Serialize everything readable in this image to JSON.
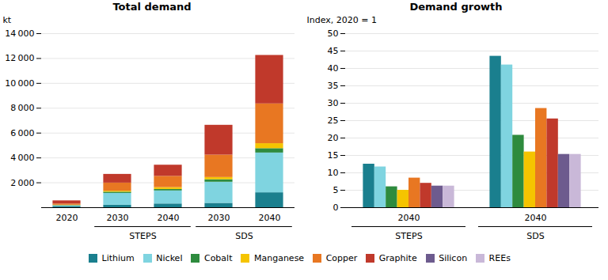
{
  "chart_data": [
    {
      "type": "bar",
      "stacked": true,
      "title": "Total demand",
      "y_label": "kt",
      "categories": [
        "2020",
        "2030",
        "2040",
        "2030",
        "2040"
      ],
      "category_groups": [
        null,
        "STEPS",
        "STEPS",
        "SDS",
        "SDS"
      ],
      "series": [
        {
          "name": "Lithium",
          "color": "#1a7f8e",
          "values": [
            100,
            200,
            300,
            350,
            1200
          ]
        },
        {
          "name": "Nickel",
          "color": "#7fd4e0",
          "values": [
            50,
            950,
            1050,
            1700,
            3200
          ]
        },
        {
          "name": "Cobalt",
          "color": "#2e8b3e",
          "values": [
            30,
            100,
            120,
            200,
            350
          ]
        },
        {
          "name": "Manganese",
          "color": "#f5c400",
          "values": [
            20,
            80,
            150,
            180,
            400
          ]
        },
        {
          "name": "Copper",
          "color": "#e87722",
          "values": [
            100,
            650,
            900,
            1800,
            3200
          ]
        },
        {
          "name": "Graphite",
          "color": "#c0392b",
          "values": [
            250,
            700,
            900,
            2400,
            3900
          ]
        }
      ],
      "ylim": [
        0,
        14000
      ],
      "yticks": [
        {
          "value": 2000,
          "label": "2 000"
        },
        {
          "value": 4000,
          "label": "4 000"
        },
        {
          "value": 6000,
          "label": "6 000"
        },
        {
          "value": 8000,
          "label": "8 000"
        },
        {
          "value": 10000,
          "label": "10 000"
        },
        {
          "value": 12000,
          "label": "12 000"
        },
        {
          "value": 14000,
          "label": "14 000"
        }
      ],
      "grid": true
    },
    {
      "type": "bar",
      "stacked": false,
      "title": "Demand growth",
      "y_label": "Index, 2020 = 1",
      "categories": [
        "2040",
        "2040"
      ],
      "category_groups": [
        "STEPS",
        "SDS"
      ],
      "series": [
        {
          "name": "Lithium",
          "color": "#1a7f8e",
          "values": [
            12.5,
            43.5
          ]
        },
        {
          "name": "Nickel",
          "color": "#7fd4e0",
          "values": [
            11.7,
            41.0
          ]
        },
        {
          "name": "Cobalt",
          "color": "#2e8b3e",
          "values": [
            6.0,
            20.8
          ]
        },
        {
          "name": "Manganese",
          "color": "#f5c400",
          "values": [
            5.0,
            16.0
          ]
        },
        {
          "name": "Copper",
          "color": "#e87722",
          "values": [
            8.5,
            28.5
          ]
        },
        {
          "name": "Graphite",
          "color": "#c0392b",
          "values": [
            7.0,
            25.5
          ]
        },
        {
          "name": "Silicon",
          "color": "#6d5b8e",
          "values": [
            6.2,
            15.3
          ]
        },
        {
          "name": "REEs",
          "color": "#c9b8d8",
          "values": [
            6.2,
            15.3
          ]
        }
      ],
      "ylim": [
        0,
        50
      ],
      "yticks": [
        0,
        5,
        10,
        15,
        20,
        25,
        30,
        35,
        40,
        45,
        50
      ],
      "grid": true,
      "legend": "bottom"
    }
  ]
}
